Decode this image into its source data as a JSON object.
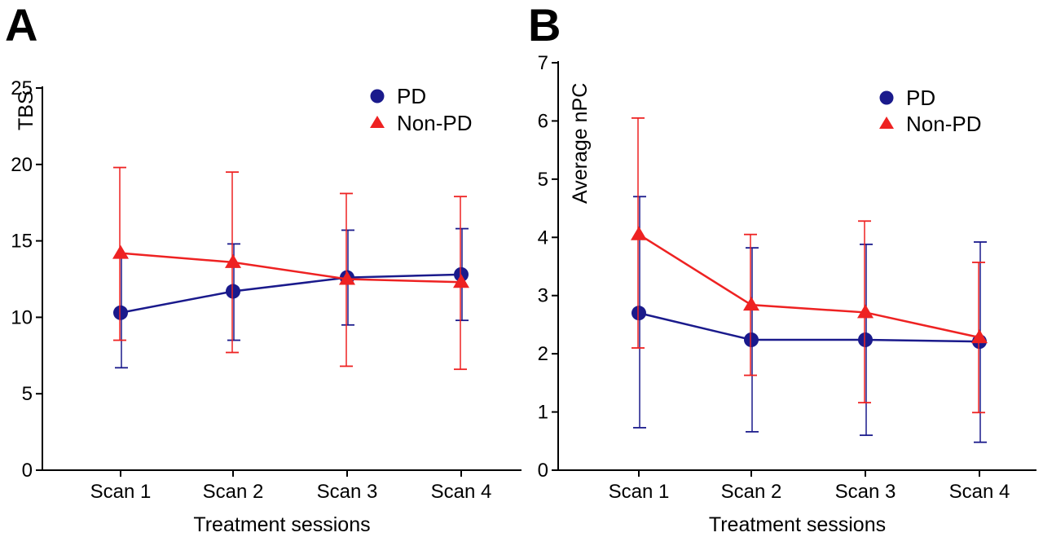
{
  "chart_data": [
    {
      "panel": "A",
      "type": "line",
      "ylabel": "TBS",
      "xlabel": "Treatment sessions",
      "categories": [
        "Scan 1",
        "Scan 2",
        "Scan 3",
        "Scan 4"
      ],
      "ylim": [
        0,
        25
      ],
      "yticks": [
        0,
        5,
        10,
        15,
        20,
        25
      ],
      "grid": false,
      "legend_position": "top-right",
      "series": [
        {
          "name": "PD",
          "color": "#1a1a8c",
          "marker": "circle",
          "values": [
            10.3,
            11.7,
            12.6,
            12.8
          ],
          "error_low": [
            6.7,
            8.5,
            9.5,
            9.8
          ],
          "error_high": [
            13.9,
            14.8,
            15.7,
            15.8
          ]
        },
        {
          "name": "Non-PD",
          "color": "#ee2222",
          "marker": "triangle",
          "values": [
            14.2,
            13.6,
            12.5,
            12.3
          ],
          "error_low": [
            8.5,
            7.7,
            6.8,
            6.6
          ],
          "error_high": [
            19.8,
            19.5,
            18.1,
            17.9
          ]
        }
      ]
    },
    {
      "panel": "B",
      "type": "line",
      "ylabel": "Average nPC",
      "xlabel": "Treatment sessions",
      "categories": [
        "Scan 1",
        "Scan 2",
        "Scan 3",
        "Scan 4"
      ],
      "ylim": [
        0,
        7
      ],
      "yticks": [
        0,
        1,
        2,
        3,
        4,
        5,
        6,
        7
      ],
      "grid": false,
      "legend_position": "top-right",
      "series": [
        {
          "name": "PD",
          "color": "#1a1a8c",
          "marker": "circle",
          "values": [
            2.7,
            2.24,
            2.24,
            2.21
          ],
          "error_low": [
            0.73,
            0.66,
            0.6,
            0.48
          ],
          "error_high": [
            4.7,
            3.82,
            3.88,
            3.92
          ]
        },
        {
          "name": "Non-PD",
          "color": "#ee2222",
          "marker": "triangle",
          "values": [
            4.05,
            2.84,
            2.71,
            2.28
          ],
          "error_low": [
            2.1,
            1.63,
            1.16,
            0.99
          ],
          "error_high": [
            6.05,
            4.05,
            4.28,
            3.57
          ]
        }
      ]
    }
  ]
}
